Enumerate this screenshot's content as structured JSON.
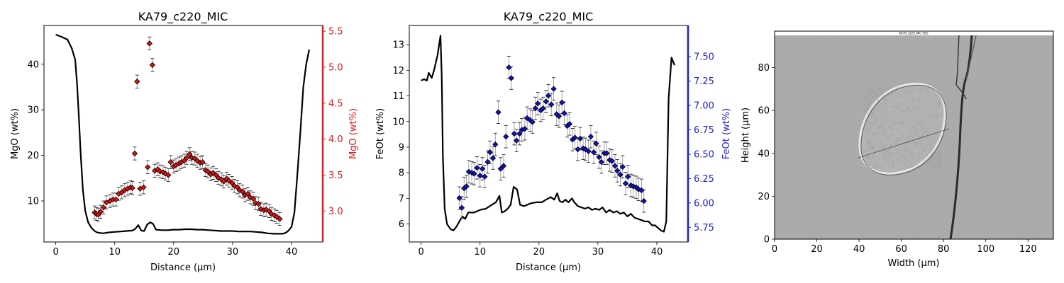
{
  "colors": {
    "profile_line": "#000000",
    "mgo_markers": "#dd1111",
    "mgo_axis": "#e31a1c",
    "feot_markers": "#1010c8",
    "feot_axis": "#1f1fcc",
    "errorbar": "#999999",
    "image_bg": "#a9a9a9"
  },
  "chart_data": [
    {
      "type": "line+scatter",
      "title": "KA79_c220_MIC",
      "xlabel": "Distance (µm)",
      "ylabel_left": "MgO (wt%)",
      "ylabel_right": "MgO (wt%)",
      "xlim": [
        -2,
        45.3
      ],
      "ylim_left": [
        1,
        48.5
      ],
      "ylim_right": [
        2.57,
        5.58
      ],
      "xticks": [
        0,
        10,
        20,
        30,
        40
      ],
      "yticks_left": [
        10,
        20,
        30,
        40
      ],
      "yticks_right": [
        3.0,
        3.5,
        4.0,
        4.5,
        5.0,
        5.5
      ],
      "ytick_labels_right": [
        "3.0",
        "3.5",
        "4.0",
        "4.5",
        "5.0",
        "5.5"
      ],
      "line": {
        "x": [
          0,
          1,
          2,
          2.7,
          3.3,
          3.6,
          3.9,
          4.2,
          4.6,
          5.0,
          5.5,
          6.0,
          6.5,
          7.0,
          8,
          9,
          10,
          11,
          12,
          13,
          13.5,
          14,
          14.5,
          15,
          15.5,
          16,
          16.5,
          17,
          18,
          19,
          20,
          21,
          22,
          23,
          24,
          25,
          26,
          27,
          28,
          29,
          30,
          31,
          32,
          33,
          34,
          35,
          36,
          37,
          38,
          38.5,
          39,
          39.5,
          40,
          40.5,
          41,
          41.5,
          42,
          42.5,
          43
        ],
        "y": [
          46.5,
          46.0,
          45.4,
          43.5,
          41.0,
          36.0,
          29.0,
          21.0,
          12.5,
          7.8,
          5.3,
          4.2,
          3.5,
          3.1,
          2.9,
          3.1,
          3.2,
          3.3,
          3.4,
          3.5,
          3.9,
          4.7,
          3.5,
          3.4,
          4.8,
          5.3,
          5.0,
          3.7,
          3.6,
          3.6,
          3.7,
          3.7,
          3.8,
          3.8,
          3.7,
          3.7,
          3.6,
          3.5,
          3.4,
          3.4,
          3.4,
          3.3,
          3.3,
          3.3,
          3.2,
          3.1,
          2.9,
          2.8,
          2.8,
          2.8,
          3.0,
          3.5,
          4.3,
          7.5,
          16,
          25,
          35,
          40,
          43.2
        ]
      },
      "points": {
        "x": [
          6.6,
          6.9,
          7.2,
          7.6,
          8.1,
          8.6,
          9.2,
          9.7,
          10.2,
          10.7,
          11.2,
          11.7,
          12.2,
          12.7,
          13.0,
          13.4,
          13.8,
          14.3,
          14.9,
          15.6,
          15.9,
          16.4,
          16.8,
          17.3,
          17.7,
          18.2,
          18.6,
          19.1,
          19.5,
          20.0,
          20.4,
          20.9,
          21.3,
          21.8,
          22.2,
          22.7,
          23.1,
          23.6,
          24.0,
          24.5,
          24.9,
          25.4,
          25.8,
          26.3,
          26.7,
          27.2,
          27.6,
          28.1,
          28.5,
          29.0,
          29.4,
          29.9,
          30.3,
          30.8,
          31.2,
          31.7,
          32.1,
          32.6,
          33.0,
          33.5,
          33.9,
          34.4,
          34.8,
          35.3,
          35.7,
          36.2,
          36.6,
          37.1,
          37.5,
          38.0
        ],
        "y": [
          2.98,
          2.96,
          2.95,
          2.99,
          3.05,
          3.12,
          3.14,
          3.16,
          3.16,
          3.24,
          3.26,
          3.29,
          3.31,
          3.33,
          3.32,
          3.8,
          4.8,
          3.31,
          3.33,
          3.61,
          5.33,
          5.03,
          3.56,
          3.58,
          3.55,
          3.54,
          3.52,
          3.5,
          3.68,
          3.62,
          3.64,
          3.66,
          3.68,
          3.7,
          3.74,
          3.79,
          3.74,
          3.73,
          3.7,
          3.67,
          3.68,
          3.57,
          3.55,
          3.51,
          3.53,
          3.5,
          3.46,
          3.44,
          3.41,
          3.45,
          3.42,
          3.39,
          3.35,
          3.33,
          3.29,
          3.27,
          3.22,
          3.24,
          3.19,
          3.17,
          3.11,
          3.1,
          3.03,
          3.01,
          3.02,
          3.0,
          2.96,
          2.94,
          2.92,
          2.89
        ],
        "err": 0.09
      }
    },
    {
      "type": "line+scatter",
      "title": "KA79_c220_MIC",
      "xlabel": "Distance (µm)",
      "ylabel_left": "FeOt (wt%)",
      "ylabel_right": "FeOt (wt%)",
      "xlim": [
        -2,
        45.3
      ],
      "ylim_left": [
        5.3,
        13.75
      ],
      "ylim_right": [
        5.6,
        7.82
      ],
      "xticks": [
        0,
        10,
        20,
        30,
        40
      ],
      "yticks_left": [
        6,
        7,
        8,
        9,
        10,
        11,
        12,
        13
      ],
      "yticks_right": [
        5.75,
        6.0,
        6.25,
        6.5,
        6.75,
        7.0,
        7.25,
        7.5
      ],
      "ytick_labels_right": [
        "5.75",
        "6.00",
        "6.25",
        "6.50",
        "6.75",
        "7.00",
        "7.25",
        "7.50"
      ],
      "line": {
        "x": [
          0,
          0.5,
          1,
          1.3,
          1.8,
          2.2,
          2.8,
          3.3,
          3.5,
          3.7,
          4.0,
          4.4,
          5.0,
          5.5,
          6.0,
          6.5,
          7.0,
          7.5,
          8,
          9,
          10,
          11,
          12,
          12.7,
          13.3,
          13.7,
          14.2,
          14.7,
          15.2,
          15.7,
          16.3,
          16.8,
          17.5,
          18.5,
          19.5,
          20.5,
          21.2,
          22,
          22.6,
          23.1,
          23.5,
          24,
          24.5,
          25,
          25.6,
          26,
          26.6,
          27.2,
          27.8,
          28.4,
          29,
          29.6,
          30.2,
          30.8,
          31.4,
          32,
          32.6,
          33.2,
          33.8,
          34.4,
          35,
          35.6,
          36.2,
          36.8,
          37.4,
          38,
          38.6,
          39.2,
          39.7,
          40.2,
          40.7,
          41.2,
          41.6,
          42,
          42.5,
          43
        ],
        "y": [
          11.6,
          11.65,
          11.6,
          11.9,
          11.7,
          12.0,
          12.6,
          13.35,
          11.8,
          8.6,
          6.6,
          6.0,
          5.8,
          5.75,
          5.9,
          6.1,
          6.3,
          6.2,
          6.45,
          6.45,
          6.55,
          6.6,
          6.75,
          6.85,
          7.1,
          6.45,
          6.5,
          6.6,
          6.75,
          7.45,
          7.35,
          6.75,
          6.7,
          6.8,
          6.85,
          6.85,
          6.95,
          7.05,
          6.95,
          7.2,
          6.9,
          6.85,
          6.95,
          6.85,
          7.0,
          6.85,
          6.7,
          6.65,
          6.6,
          6.65,
          6.55,
          6.6,
          6.55,
          6.65,
          6.45,
          6.55,
          6.45,
          6.5,
          6.4,
          6.45,
          6.3,
          6.4,
          6.25,
          6.2,
          6.15,
          6.1,
          6.1,
          5.95,
          5.95,
          5.85,
          5.75,
          5.7,
          6.1,
          10.9,
          12.5,
          12.2
        ]
      },
      "points": {
        "x": [
          6.5,
          6.9,
          7.3,
          7.7,
          8.1,
          8.6,
          9.0,
          9.5,
          10.0,
          10.4,
          10.8,
          11.3,
          11.7,
          12.2,
          12.6,
          13.1,
          13.5,
          14.0,
          14.4,
          14.9,
          15.3,
          15.8,
          16.2,
          16.7,
          17.1,
          17.6,
          18.0,
          18.5,
          18.9,
          19.4,
          19.8,
          20.3,
          20.7,
          21.2,
          21.6,
          22.1,
          22.5,
          23.0,
          23.4,
          23.9,
          24.3,
          24.8,
          25.2,
          25.7,
          26.1,
          26.6,
          27.0,
          27.5,
          27.9,
          28.4,
          28.8,
          29.3,
          29.7,
          30.2,
          30.6,
          31.1,
          31.5,
          32.0,
          32.4,
          32.9,
          33.3,
          33.8,
          34.2,
          34.7,
          35.1,
          35.6,
          36.0,
          36.5,
          36.9,
          37.4,
          37.8
        ],
        "y": [
          6.05,
          5.95,
          6.15,
          6.17,
          6.32,
          6.31,
          6.3,
          6.36,
          6.28,
          6.35,
          6.27,
          6.42,
          6.52,
          6.46,
          6.6,
          6.93,
          6.35,
          6.38,
          6.68,
          7.39,
          7.28,
          6.71,
          6.64,
          6.71,
          6.75,
          6.76,
          6.87,
          6.85,
          6.83,
          6.97,
          7.02,
          6.95,
          6.97,
          7.04,
          7.1,
          7.01,
          7.17,
          6.91,
          6.89,
          7.03,
          6.92,
          6.79,
          6.81,
          6.65,
          6.67,
          6.55,
          6.66,
          6.56,
          6.55,
          6.53,
          6.68,
          6.52,
          6.61,
          6.47,
          6.42,
          6.51,
          6.51,
          6.44,
          6.43,
          6.38,
          6.33,
          6.29,
          6.37,
          6.2,
          6.27,
          6.18,
          6.17,
          6.16,
          6.14,
          6.13,
          6.02
        ],
        "err": 0.115
      }
    },
    {
      "type": "image",
      "caption": "KA79_c220_MIC (SE)",
      "xlabel": "Width (µm)",
      "ylabel": "Height (µm)",
      "xlim": [
        0,
        132
      ],
      "ylim": [
        0,
        97
      ],
      "xticks": [
        0,
        20,
        40,
        60,
        80,
        100,
        120
      ],
      "yticks": [
        0,
        20,
        40,
        60,
        80
      ]
    }
  ]
}
